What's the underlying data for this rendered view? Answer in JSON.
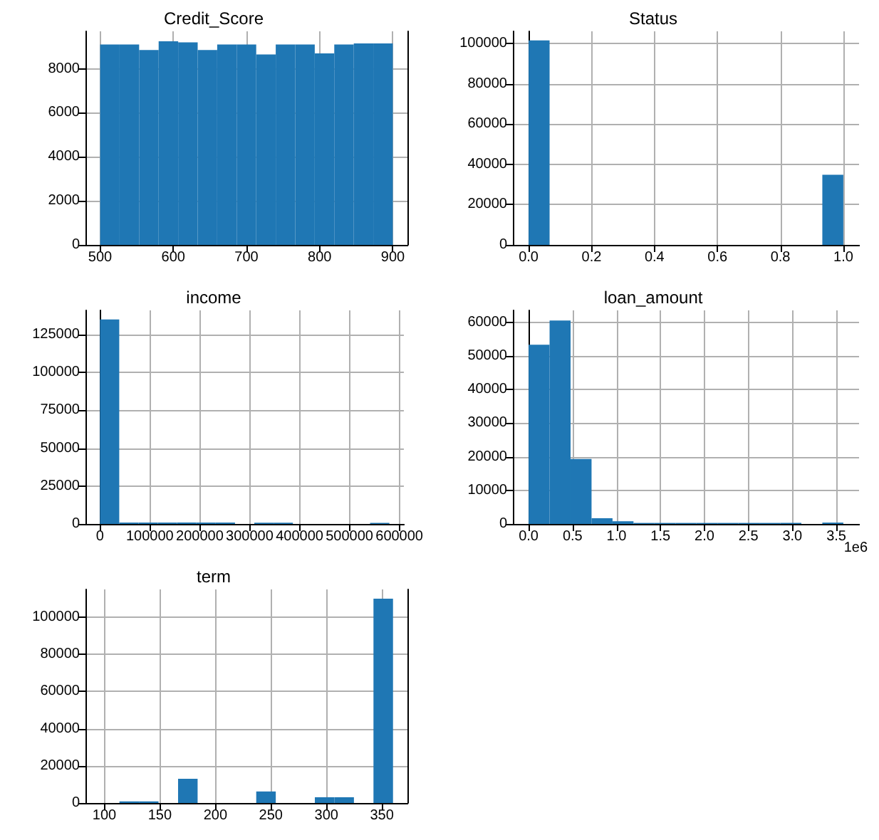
{
  "chart_data": [
    {
      "type": "histogram",
      "title": "Credit_Score",
      "color": "#1f77b4",
      "grid": true,
      "bins": [
        500,
        526.67,
        553.33,
        580,
        606.67,
        633.33,
        660,
        686.67,
        713.33,
        740,
        766.67,
        793.33,
        820,
        846.67,
        873.33,
        900
      ],
      "values": [
        9100,
        9100,
        8850,
        9250,
        9200,
        8850,
        9100,
        9100,
        8650,
        9100,
        9100,
        8700,
        9100,
        9150,
        9150
      ],
      "xlim": [
        480,
        920
      ],
      "ylim": [
        0,
        9700
      ],
      "xticks": [
        500,
        600,
        700,
        800,
        900
      ],
      "yticks": [
        0,
        2000,
        4000,
        6000,
        8000
      ]
    },
    {
      "type": "histogram",
      "title": "Status",
      "color": "#1f77b4",
      "grid": true,
      "bins": [
        0,
        0.0667,
        0.1333,
        0.2,
        0.2667,
        0.3333,
        0.4,
        0.4667,
        0.5333,
        0.6,
        0.6667,
        0.7333,
        0.8,
        0.8667,
        0.9333,
        1
      ],
      "values": [
        101500,
        0,
        0,
        0,
        0,
        0,
        0,
        0,
        0,
        0,
        0,
        0,
        0,
        0,
        34800
      ],
      "xlim": [
        -0.05,
        1.05
      ],
      "ylim": [
        0,
        106000
      ],
      "xticks": [
        {
          "value": 0,
          "label": "0.0"
        },
        {
          "value": 0.2,
          "label": "0.2"
        },
        {
          "value": 0.4,
          "label": "0.4"
        },
        {
          "value": 0.6,
          "label": "0.6"
        },
        {
          "value": 0.8,
          "label": "0.8"
        },
        {
          "value": 1,
          "label": "1.0"
        }
      ],
      "yticks": [
        0,
        20000,
        40000,
        60000,
        80000,
        100000
      ]
    },
    {
      "type": "histogram",
      "title": "income",
      "color": "#1f77b4",
      "grid": true,
      "bins": [
        0,
        38667,
        77333,
        116000,
        154667,
        193333,
        232000,
        270667,
        309333,
        348000,
        386667,
        425333,
        464000,
        502667,
        541333,
        580000
      ],
      "values": [
        135000,
        900,
        900,
        900,
        900,
        900,
        900,
        0,
        800,
        800,
        0,
        0,
        0,
        0,
        700
      ],
      "xlim": [
        -29000,
        609000
      ],
      "ylim": [
        0,
        141000
      ],
      "xticks": [
        0,
        100000,
        200000,
        300000,
        400000,
        500000,
        600000
      ],
      "yticks": [
        0,
        25000,
        50000,
        75000,
        100000,
        125000
      ]
    },
    {
      "type": "histogram",
      "title": "loan_amount",
      "color": "#1f77b4",
      "grid": true,
      "annotations": [
        "1e6"
      ],
      "bins": [
        0,
        0.2387,
        0.4773,
        0.716,
        0.9547,
        1.1933,
        1.432,
        1.6707,
        1.9093,
        2.148,
        2.3867,
        2.6253,
        2.864,
        3.1027,
        3.3413,
        3.58
      ],
      "values": [
        53300,
        60500,
        19300,
        1700,
        800,
        300,
        300,
        300,
        300,
        300,
        300,
        300,
        300,
        0,
        400
      ],
      "xlim": [
        -0.179,
        3.759
      ],
      "ylim": [
        0,
        63500
      ],
      "xticks": [
        {
          "value": 0,
          "label": "0.0"
        },
        {
          "value": 0.5,
          "label": "0.5"
        },
        {
          "value": 1,
          "label": "1.0"
        },
        {
          "value": 1.5,
          "label": "1.5"
        },
        {
          "value": 2,
          "label": "2.0"
        },
        {
          "value": 2.5,
          "label": "2.5"
        },
        {
          "value": 3,
          "label": "3.0"
        },
        {
          "value": 3.5,
          "label": "3.5"
        }
      ],
      "yticks": [
        0,
        10000,
        20000,
        30000,
        40000,
        50000,
        60000
      ]
    },
    {
      "type": "histogram",
      "title": "term",
      "color": "#1f77b4",
      "grid": true,
      "bins": [
        96,
        113.6,
        131.2,
        148.8,
        166.4,
        184,
        201.6,
        219.2,
        236.8,
        254.4,
        272,
        289.6,
        307.2,
        324.8,
        342.4,
        360
      ],
      "values": [
        0,
        900,
        900,
        0,
        13000,
        0,
        0,
        0,
        6200,
        0,
        0,
        3100,
        3100,
        0,
        110000
      ],
      "xlim": [
        83,
        373
      ],
      "ylim": [
        0,
        115000
      ],
      "xticks": [
        100,
        150,
        200,
        250,
        300,
        350
      ],
      "yticks": [
        0,
        20000,
        40000,
        60000,
        80000,
        100000
      ]
    }
  ]
}
